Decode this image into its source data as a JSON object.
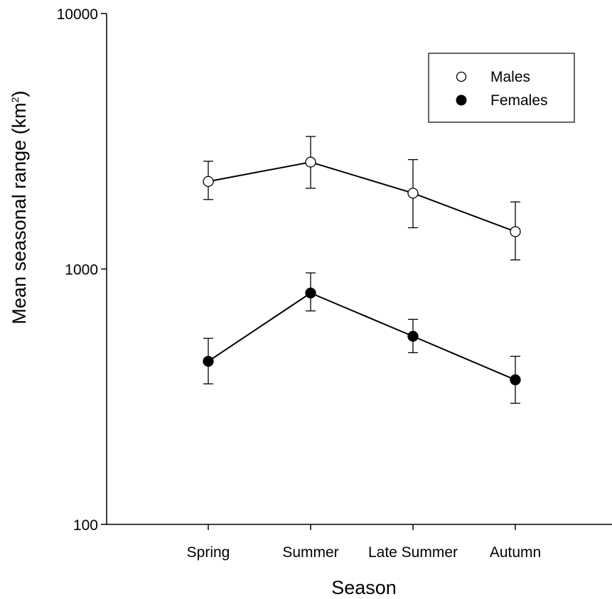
{
  "chart_data": {
    "type": "line",
    "xlabel": "Season",
    "ylabel": "Mean seasonal range (km",
    "ylabel_sup": "2",
    "ylabel_close": ")",
    "yscale": "log",
    "ylim": [
      100,
      10000
    ],
    "yticks": [
      100,
      1000,
      10000
    ],
    "ytick_labels": [
      "100",
      "1000",
      "10000"
    ],
    "categories": [
      "Spring",
      "Summer",
      "Late Summer",
      "Autumn"
    ],
    "grid": false,
    "legend_position": "top-right",
    "series": [
      {
        "name": "Males",
        "marker": "open-circle",
        "color": "#000000",
        "values": [
          2200,
          2620,
          1980,
          1400
        ],
        "err_low": [
          1870,
          2070,
          1450,
          1085
        ],
        "err_high": [
          2640,
          3300,
          2680,
          1830
        ]
      },
      {
        "name": "Females",
        "marker": "filled-circle",
        "color": "#000000",
        "values": [
          435,
          805,
          545,
          368
        ],
        "err_low": [
          355,
          685,
          470,
          298
        ],
        "err_high": [
          535,
          965,
          635,
          455
        ]
      }
    ]
  }
}
